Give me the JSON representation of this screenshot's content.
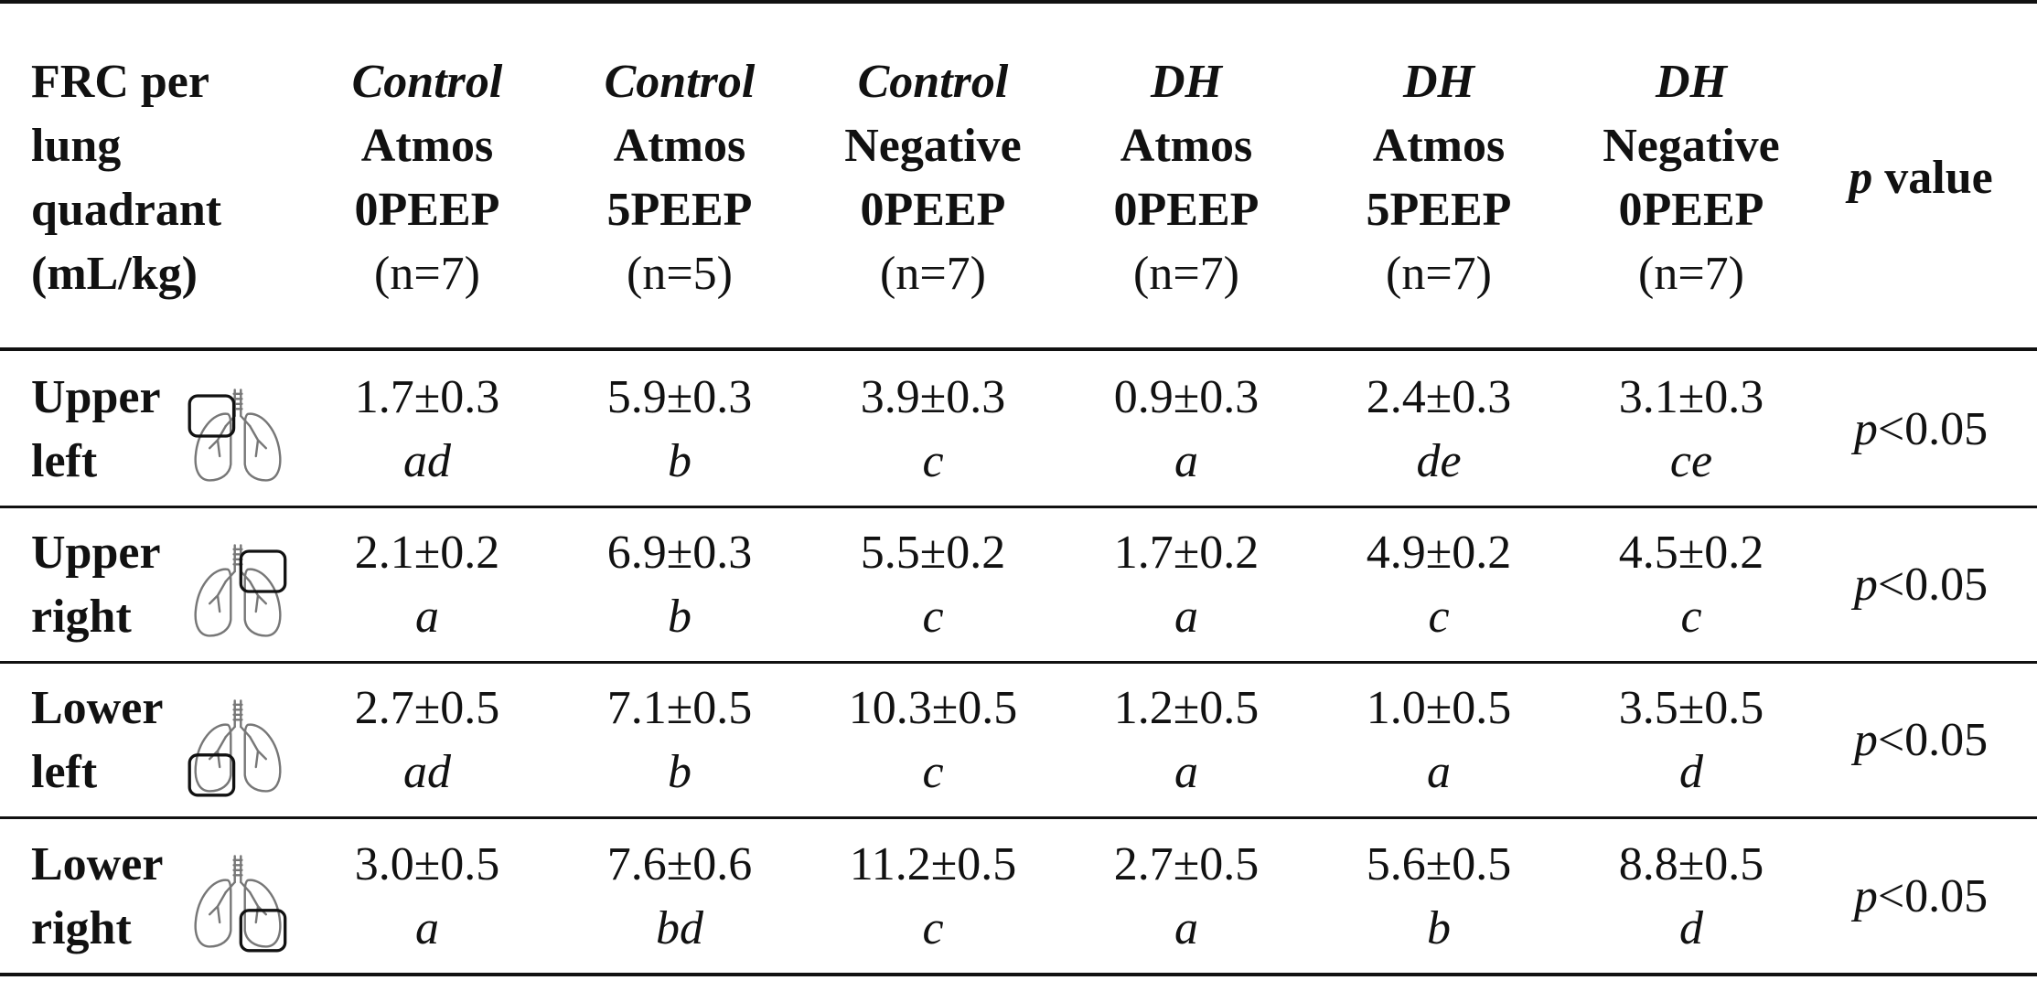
{
  "header": {
    "first": [
      "FRC per",
      "lung",
      "quadrant",
      "(mL/kg)"
    ],
    "groups": [
      {
        "group": "Control",
        "cond1": "Atmos",
        "cond2": "0PEEP",
        "n": "(n=7)"
      },
      {
        "group": "Control",
        "cond1": "Atmos",
        "cond2": "5PEEP",
        "n": "(n=5)"
      },
      {
        "group": "Control",
        "cond1": "Negative",
        "cond2": "0PEEP",
        "n": "(n=7)"
      },
      {
        "group": "DH",
        "cond1": "Atmos",
        "cond2": "0PEEP",
        "n": "(n=7)"
      },
      {
        "group": "DH",
        "cond1": "Atmos",
        "cond2": "5PEEP",
        "n": "(n=7)"
      },
      {
        "group": "DH",
        "cond1": "Negative",
        "cond2": "0PEEP",
        "n": "(n=7)"
      }
    ],
    "pvalue": {
      "p": "p",
      "rest": " value"
    }
  },
  "rows": [
    {
      "label": [
        "Upper",
        "left"
      ],
      "icon": "lung-upper-left-icon",
      "values": [
        [
          "1.7±0.3",
          "ad"
        ],
        [
          "5.9±0.3",
          "b"
        ],
        [
          "3.9±0.3",
          "c"
        ],
        [
          "0.9±0.3",
          "a"
        ],
        [
          "2.4±0.3",
          "de"
        ],
        [
          "3.1±0.3",
          "ce"
        ]
      ],
      "p": "p",
      "pval": "<0.05"
    },
    {
      "label": [
        "Upper",
        "right"
      ],
      "icon": "lung-upper-right-icon",
      "values": [
        [
          "2.1±0.2",
          "a"
        ],
        [
          "6.9±0.3",
          "b"
        ],
        [
          "5.5±0.2",
          "c"
        ],
        [
          "1.7±0.2",
          "a"
        ],
        [
          "4.9±0.2",
          "c"
        ],
        [
          "4.5±0.2",
          "c"
        ]
      ],
      "p": "p",
      "pval": "<0.05"
    },
    {
      "label": [
        "Lower",
        "left"
      ],
      "icon": "lung-lower-left-icon",
      "values": [
        [
          "2.7±0.5",
          "ad"
        ],
        [
          "7.1±0.5",
          "b"
        ],
        [
          "10.3±0.5",
          "c"
        ],
        [
          "1.2±0.5",
          "a"
        ],
        [
          "1.0±0.5",
          "a"
        ],
        [
          "3.5±0.5",
          "d"
        ]
      ],
      "p": "p",
      "pval": "<0.05"
    },
    {
      "label": [
        "Lower",
        "right"
      ],
      "icon": "lung-lower-right-icon",
      "values": [
        [
          "3.0±0.5",
          "a"
        ],
        [
          "7.6±0.6",
          "bd"
        ],
        [
          "11.2±0.5",
          "c"
        ],
        [
          "2.7±0.5",
          "a"
        ],
        [
          "5.6±0.5",
          "b"
        ],
        [
          "8.8±0.5",
          "d"
        ]
      ],
      "p": "p",
      "pval": "<0.05"
    }
  ]
}
